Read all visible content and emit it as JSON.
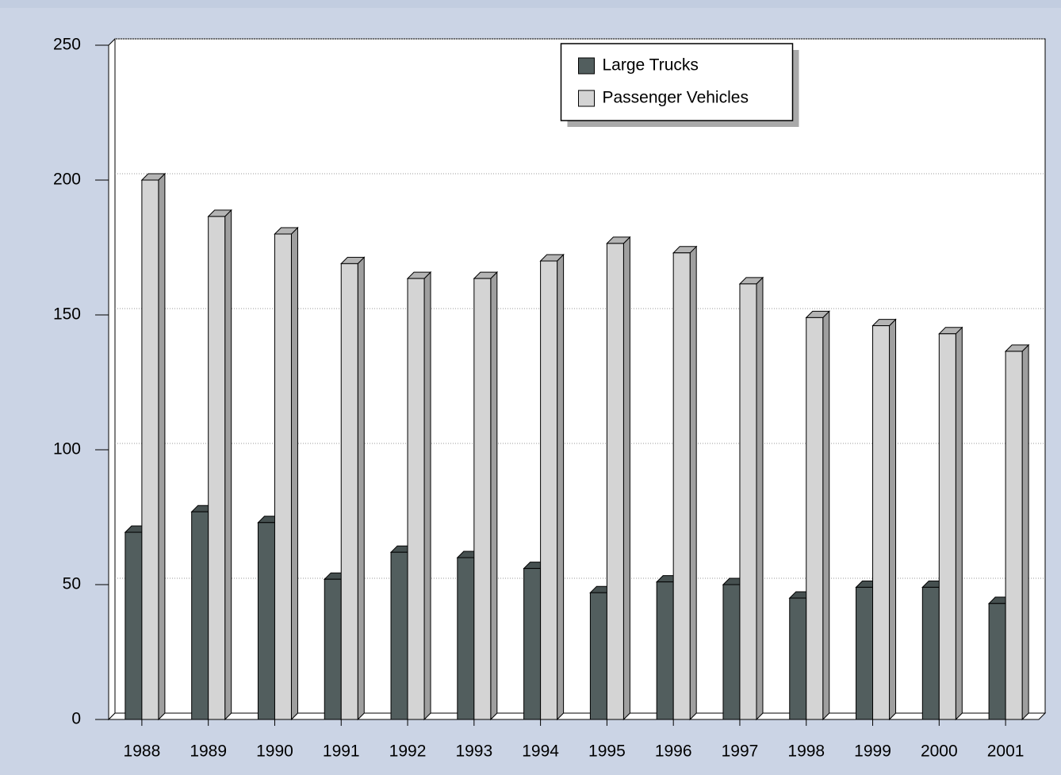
{
  "chart_data": {
    "type": "bar3d",
    "categories": [
      "1988",
      "1989",
      "1990",
      "1991",
      "1992",
      "1993",
      "1994",
      "1995",
      "1996",
      "1997",
      "1998",
      "1999",
      "2000",
      "2001"
    ],
    "series": [
      {
        "name": "Large Trucks",
        "color": "#525e5e",
        "values": [
          69.4,
          77,
          73,
          52,
          62,
          60,
          56,
          47,
          51,
          50,
          45,
          49,
          49,
          43
        ]
      },
      {
        "name": "Passenger Vehicles",
        "color": "#d4d4d4",
        "values": [
          200,
          186.5,
          180,
          169,
          163.5,
          163.5,
          170,
          176.5,
          173,
          161.5,
          149,
          146,
          143,
          136.5
        ]
      }
    ],
    "ylim": [
      0,
      250
    ],
    "yticks": [
      0,
      50,
      100,
      150,
      200,
      250
    ],
    "grid": true,
    "legend": "upper center"
  }
}
